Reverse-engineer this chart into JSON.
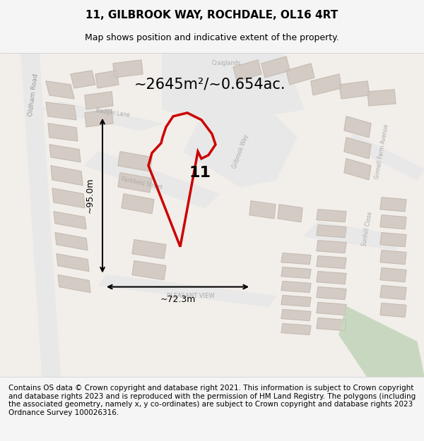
{
  "title": "11, GILBROOK WAY, ROCHDALE, OL16 4RT",
  "subtitle": "Map shows position and indicative extent of the property.",
  "area_text": "~2645m²/~0.654ac.",
  "height_label": "~95.0m",
  "width_label": "~72.3m",
  "property_label": "11",
  "footer_text": "Contains OS data © Crown copyright and database right 2021. This information is subject to Crown copyright and database rights 2023 and is reproduced with the permission of HM Land Registry. The polygons (including the associated geometry, namely x, y co-ordinates) are subject to Crown copyright and database rights 2023 Ordnance Survey 100026316.",
  "bg_color": "#f0eeeb",
  "map_bg": "#f5f3f0",
  "road_color": "#f0c8c0",
  "building_color": "#d8d0c8",
  "highlight_color": "#e8e4e0",
  "property_polygon_color": "#cc0000",
  "title_fontsize": 11,
  "subtitle_fontsize": 9,
  "footer_fontsize": 7.5
}
